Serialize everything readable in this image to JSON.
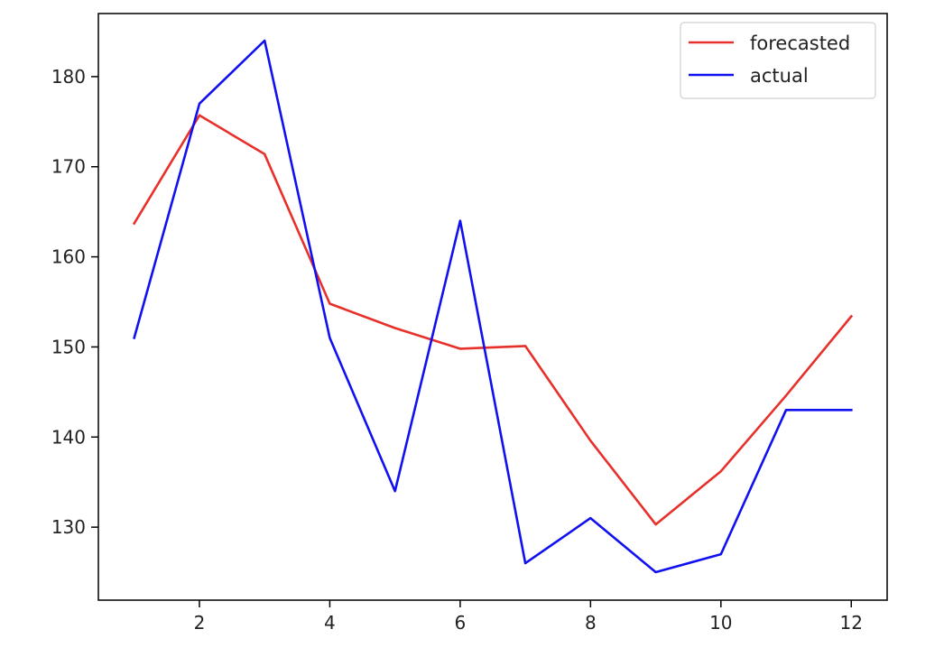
{
  "chart_data": {
    "type": "line",
    "title": "",
    "xlabel": "",
    "ylabel": "",
    "x": [
      1,
      2,
      3,
      4,
      5,
      6,
      7,
      8,
      9,
      10,
      11,
      12
    ],
    "xlim": [
      0.45,
      12.55
    ],
    "ylim": [
      121.9,
      187.0
    ],
    "xticks": [
      2,
      4,
      6,
      8,
      10,
      12
    ],
    "yticks": [
      130,
      140,
      150,
      160,
      170,
      180
    ],
    "grid": false,
    "legend_position": "top-right",
    "series": [
      {
        "name": "forecasted",
        "color": "#e8302a",
        "values": [
          163.7,
          175.7,
          171.4,
          154.8,
          152.1,
          149.8,
          150.1,
          139.6,
          130.3,
          136.2,
          144.6,
          153.4
        ]
      },
      {
        "name": "actual",
        "color": "#1010f0",
        "values": [
          151.0,
          177.0,
          184.0,
          151.0,
          134.0,
          164.0,
          126.0,
          131.0,
          125.0,
          127.0,
          143.0,
          143.0
        ]
      }
    ]
  }
}
